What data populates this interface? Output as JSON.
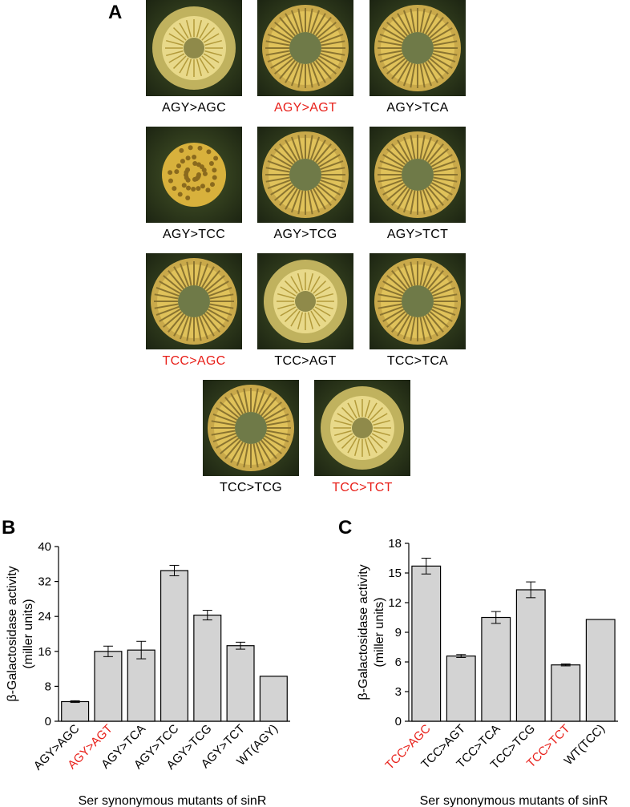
{
  "panels": {
    "a": {
      "letter": "A",
      "colonies": [
        {
          "label": "AGY>AGC",
          "highlight": false,
          "phenotype": "smooth"
        },
        {
          "label": "AGY>AGT",
          "highlight": true,
          "phenotype": "wrinkled"
        },
        {
          "label": "AGY>TCA",
          "highlight": false,
          "phenotype": "wrinkled"
        },
        {
          "label": "AGY>TCC",
          "highlight": false,
          "phenotype": "compact"
        },
        {
          "label": "AGY>TCG",
          "highlight": false,
          "phenotype": "wrinkled"
        },
        {
          "label": "AGY>TCT",
          "highlight": false,
          "phenotype": "wrinkled"
        },
        {
          "label": "TCC>AGC",
          "highlight": true,
          "phenotype": "wrinkled"
        },
        {
          "label": "TCC>AGT",
          "highlight": false,
          "phenotype": "smooth"
        },
        {
          "label": "TCC>TCA",
          "highlight": false,
          "phenotype": "wrinkled"
        },
        {
          "label": "TCC>TCG",
          "highlight": false,
          "phenotype": "wrinkled"
        },
        {
          "label": "TCC>TCT",
          "highlight": true,
          "phenotype": "smooth"
        }
      ]
    },
    "b": {
      "letter": "B"
    },
    "c": {
      "letter": "C"
    }
  },
  "colors": {
    "highlight": "#e8201a",
    "bar_fill": "#d3d3d3",
    "bar_stroke": "#000000"
  },
  "chart_data": [
    {
      "type": "bar",
      "panel": "B",
      "categories": [
        "AGY>AGC",
        "AGY>AGT",
        "AGY>TCA",
        "AGY>TCC",
        "AGY>TCG",
        "AGY>TCT",
        "WT(AGY)"
      ],
      "highlighted_categories": [
        "AGY>AGT"
      ],
      "values": [
        4.5,
        16.0,
        16.3,
        34.5,
        24.3,
        17.3,
        10.3
      ],
      "errors": [
        0.2,
        1.2,
        2.0,
        1.2,
        1.1,
        0.8,
        0.0
      ],
      "ylabel": "β-Galactosidase activity",
      "ylabel2": "(miller units)",
      "xlabel": "Ser synonymous mutants of sinR",
      "ylim": [
        0,
        40
      ],
      "yticks": [
        0,
        8,
        16,
        24,
        32,
        40
      ]
    },
    {
      "type": "bar",
      "panel": "C",
      "categories": [
        "TCC>AGC",
        "TCC>AGT",
        "TCC>TCA",
        "TCC>TCG",
        "TCC>TCT",
        "WT(TCC)"
      ],
      "highlighted_categories": [
        "TCC>AGC",
        "TCC>TCT"
      ],
      "values": [
        15.7,
        6.6,
        10.5,
        13.3,
        5.7,
        10.3
      ],
      "errors": [
        0.8,
        0.15,
        0.6,
        0.8,
        0.1,
        0.0
      ],
      "ylabel": "β-Galactosidase activity",
      "ylabel2": "(miller units)",
      "xlabel": "Ser synonymous mutants of sinR",
      "ylim": [
        0,
        18
      ],
      "yticks": [
        0,
        3,
        6,
        9,
        12,
        15,
        18
      ]
    }
  ]
}
